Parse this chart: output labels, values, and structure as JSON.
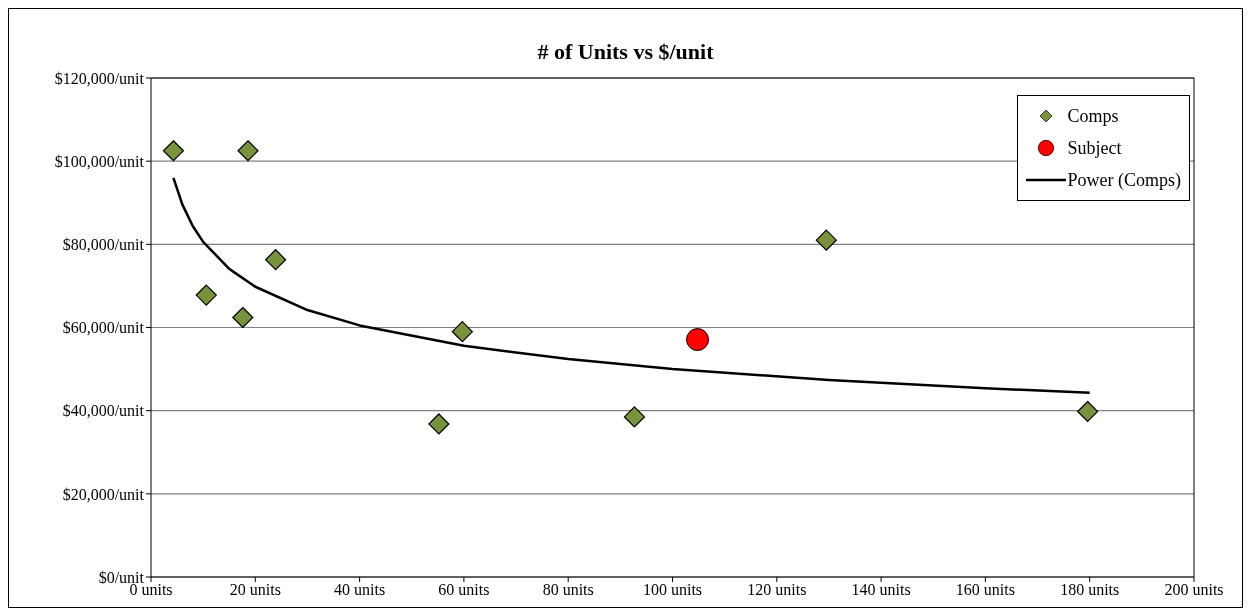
{
  "chart_data": {
    "type": "scatter",
    "title": "# of Units vs $/unit",
    "xlim": [
      0,
      200
    ],
    "xticks": [
      {
        "value": 0,
        "label": "0 units"
      },
      {
        "value": 20,
        "label": "20 units"
      },
      {
        "value": 40,
        "label": "40 units"
      },
      {
        "value": 60,
        "label": "60 units"
      },
      {
        "value": 80,
        "label": "80 units"
      },
      {
        "value": 100,
        "label": "100 units"
      },
      {
        "value": 120,
        "label": "120 units"
      },
      {
        "value": 140,
        "label": "140 units"
      },
      {
        "value": 160,
        "label": "160 units"
      },
      {
        "value": 180,
        "label": "180 units"
      },
      {
        "value": 200,
        "label": "200 units"
      }
    ],
    "ylim": [
      0,
      120000
    ],
    "yticks": [
      {
        "value": 0,
        "label": "$0/unit"
      },
      {
        "value": 20000,
        "label": "$20,000/unit"
      },
      {
        "value": 40000,
        "label": "$40,000/unit"
      },
      {
        "value": 60000,
        "label": "$60,000/unit"
      },
      {
        "value": 80000,
        "label": "$80,000/unit"
      },
      {
        "value": 100000,
        "label": "$100,000/unit"
      },
      {
        "value": 120000,
        "label": "$120,000/unit"
      }
    ],
    "grid": "y",
    "legend": "top right",
    "series": [
      {
        "name": "Comps",
        "marker": "diamond",
        "color": "#77933c",
        "x": [
          4.3,
          18.6,
          10.6,
          17.6,
          23.9,
          55.2,
          59.7,
          92.7,
          129.5,
          179.6
        ],
        "values": [
          102500,
          102500,
          67800,
          62400,
          76300,
          36800,
          59000,
          38500,
          81000,
          39800
        ]
      },
      {
        "name": "Subject",
        "marker": "circle",
        "color": "#ff0000",
        "x": [
          104.8
        ],
        "values": [
          57100
        ]
      },
      {
        "name": "Power (Comps)",
        "type": "line",
        "line_style": "solid",
        "color": "#000000",
        "x": [
          4.3,
          6,
          8,
          10,
          15,
          20,
          30,
          40,
          60,
          80,
          100,
          130,
          160,
          180
        ],
        "values": [
          96000,
          89600,
          84400,
          80600,
          74100,
          69800,
          64200,
          60500,
          55600,
          52400,
          50000,
          47400,
          45400,
          44300
        ]
      }
    ]
  }
}
